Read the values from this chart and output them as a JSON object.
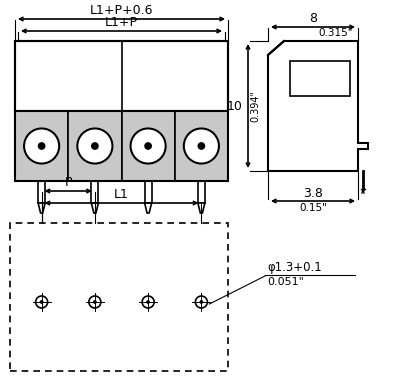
{
  "bg_color": "#ffffff",
  "line_color": "#000000",
  "gray_fill": "#c8c8c8",
  "annotations": {
    "dim1_label": "L1+P+0.6",
    "dim2_label": "L1+P",
    "dim3_label": "L1",
    "dim4_label": "P",
    "side_width_label": "8",
    "side_width_label2": "0.315\"",
    "side_height_label": "10",
    "side_height_label2": "0.394\"",
    "side_bot_label": "3.8",
    "side_bot_label2": "0.15\"",
    "hole_label": "φ1.3+0.1",
    "hole_label2": "0.051\""
  }
}
